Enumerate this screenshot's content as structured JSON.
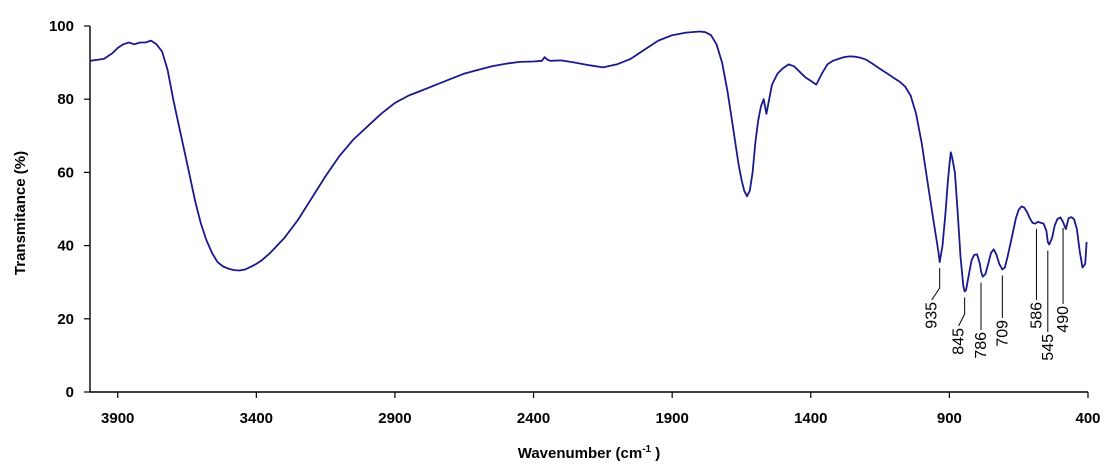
{
  "chart_data": {
    "type": "line",
    "title": "",
    "xlabel": "Wavenumber (cm",
    "xlabel_sup": "-1",
    "xlabel_close": " )",
    "ylabel": "Transmitance (%)",
    "xlim": [
      4000,
      400
    ],
    "ylim": [
      0,
      100
    ],
    "x_reversed": true,
    "x_ticks": [
      3900,
      3400,
      2900,
      2400,
      1900,
      1400,
      900,
      400
    ],
    "y_ticks": [
      0,
      20,
      40,
      60,
      80,
      100
    ],
    "grid": false,
    "legend": "none",
    "series": [
      {
        "color": "#1a1a8c",
        "x": [
          4000,
          3950,
          3920,
          3900,
          3880,
          3860,
          3840,
          3820,
          3800,
          3780,
          3760,
          3740,
          3720,
          3700,
          3680,
          3660,
          3640,
          3620,
          3600,
          3580,
          3560,
          3540,
          3520,
          3500,
          3480,
          3460,
          3440,
          3420,
          3400,
          3380,
          3350,
          3300,
          3250,
          3200,
          3150,
          3100,
          3050,
          3000,
          2950,
          2900,
          2850,
          2800,
          2750,
          2700,
          2650,
          2600,
          2550,
          2500,
          2450,
          2400,
          2370,
          2360,
          2350,
          2340,
          2300,
          2250,
          2200,
          2150,
          2100,
          2050,
          2000,
          1950,
          1900,
          1850,
          1800,
          1780,
          1760,
          1740,
          1720,
          1700,
          1690,
          1680,
          1670,
          1660,
          1650,
          1640,
          1630,
          1620,
          1610,
          1600,
          1590,
          1580,
          1570,
          1560,
          1550,
          1540,
          1520,
          1500,
          1480,
          1460,
          1440,
          1420,
          1400,
          1380,
          1360,
          1340,
          1320,
          1300,
          1280,
          1260,
          1240,
          1220,
          1200,
          1180,
          1160,
          1140,
          1120,
          1100,
          1080,
          1060,
          1040,
          1020,
          1000,
          980,
          960,
          940,
          935,
          925,
          915,
          905,
          900,
          895,
          890,
          880,
          870,
          860,
          850,
          845,
          840,
          830,
          820,
          810,
          800,
          790,
          786,
          780,
          770,
          760,
          750,
          740,
          730,
          720,
          709,
          700,
          690,
          680,
          670,
          660,
          650,
          640,
          630,
          620,
          610,
          600,
          590,
          586,
          580,
          570,
          560,
          550,
          545,
          540,
          530,
          520,
          510,
          500,
          490,
          480,
          470,
          460,
          450,
          440,
          430,
          420,
          410,
          405
        ],
        "y": [
          90.5,
          91,
          92.5,
          94,
          95,
          95.5,
          95,
          95.5,
          95.5,
          96,
          95,
          93,
          88,
          80,
          73,
          66,
          59,
          52,
          46,
          41.5,
          38,
          35.5,
          34.3,
          33.7,
          33.3,
          33.2,
          33.5,
          34.2,
          35,
          36,
          38,
          42,
          47,
          53,
          59,
          64.5,
          69,
          72.5,
          76,
          79,
          81,
          82.5,
          84,
          85.5,
          87,
          88,
          89,
          89.7,
          90.2,
          90.3,
          90.5,
          91.5,
          90.8,
          90.5,
          90.6,
          90,
          89.3,
          88.7,
          89.5,
          91,
          93.5,
          96,
          97.5,
          98.2,
          98.5,
          98.3,
          97.5,
          95,
          90,
          82,
          77,
          72,
          67,
          62,
          58,
          55,
          53.5,
          55,
          60,
          68,
          74,
          78,
          80,
          76,
          80,
          84,
          87,
          88.5,
          89.5,
          89,
          87.5,
          86,
          85,
          84,
          87,
          89.5,
          90.5,
          91,
          91.5,
          91.7,
          91.6,
          91.3,
          90.8,
          89.8,
          88.8,
          87.8,
          86.8,
          85.8,
          84.8,
          83.5,
          81,
          76,
          68,
          58,
          48,
          38.5,
          35.5,
          40,
          48,
          58,
          62,
          65.5,
          64,
          60,
          49,
          37,
          29,
          27.5,
          27.8,
          32,
          36,
          37.5,
          37.6,
          35,
          33,
          31.5,
          32.2,
          35,
          38,
          39,
          37.5,
          35,
          33.5,
          34,
          37,
          40.5,
          44,
          47.5,
          49.8,
          50.7,
          50.4,
          49.2,
          47.5,
          46.2,
          46,
          46.2,
          46.5,
          46.2,
          46,
          44,
          41,
          40.3,
          42,
          45.5,
          47.3,
          47.7,
          46.5,
          44.5,
          47.5,
          47.8,
          47.2,
          44.5,
          38.5,
          34,
          35,
          41
        ]
      }
    ],
    "annotations": [
      {
        "text": "935",
        "x": 935,
        "y": 35.5
      },
      {
        "text": "845",
        "x": 845,
        "y": 27.5
      },
      {
        "text": "786",
        "x": 786,
        "y": 31.5
      },
      {
        "text": "709",
        "x": 709,
        "y": 33.5
      },
      {
        "text": "586",
        "x": 586,
        "y": 46.2
      },
      {
        "text": "545",
        "x": 545,
        "y": 40.3
      },
      {
        "text": "490",
        "x": 490,
        "y": 46.5
      }
    ]
  }
}
